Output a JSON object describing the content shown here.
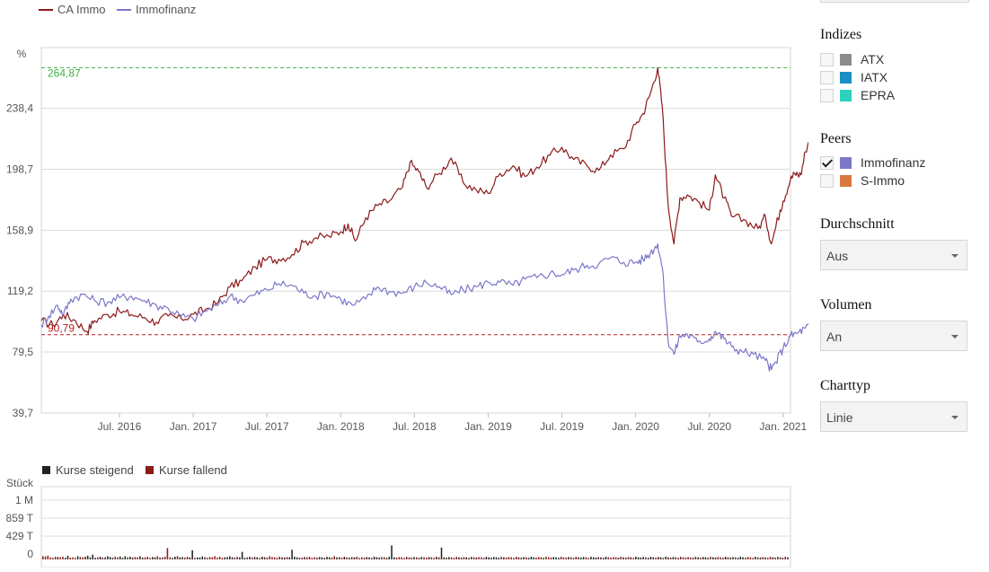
{
  "chart_data": [
    {
      "type": "line",
      "ylabel": "%",
      "ylim": [
        39.7,
        278.0
      ],
      "y_ticks": [
        "238,4",
        "198,7",
        "158,9",
        "119,2",
        "79,5",
        "39,7"
      ],
      "y_tick_values": [
        238.4,
        198.7,
        158.9,
        119.2,
        79.5,
        39.7
      ],
      "x_ticks": [
        "Jul. 2016",
        "Jan. 2017",
        "Jul. 2017",
        "Jan. 2018",
        "Jul. 2018",
        "Jan. 2019",
        "Jul. 2019",
        "Jan. 2020",
        "Jul. 2020",
        "Jan. 2021"
      ],
      "x_tick_values": [
        2016.5,
        2017.0,
        2017.5,
        2018.0,
        2018.5,
        2019.0,
        2019.5,
        2020.0,
        2020.5,
        2021.0
      ],
      "xlim": [
        2015.97,
        2021.05
      ],
      "grid": true,
      "legend_position": "top-left",
      "reference_lines": [
        {
          "label": "264,87",
          "value": 264.87,
          "color": "#3cb043"
        },
        {
          "label": "90,79",
          "value": 90.79,
          "color": "#b3201e"
        }
      ],
      "series": [
        {
          "name": "CA Immo",
          "color": "#8b1a1a",
          "points": [
            [
              2015.97,
              100
            ],
            [
              2016.05,
              97
            ],
            [
              2016.12,
              104
            ],
            [
              2016.2,
              100
            ],
            [
              2016.28,
              93
            ],
            [
              2016.33,
              100
            ],
            [
              2016.42,
              104
            ],
            [
              2016.5,
              106
            ],
            [
              2016.58,
              104
            ],
            [
              2016.67,
              102
            ],
            [
              2016.75,
              99
            ],
            [
              2016.83,
              103
            ],
            [
              2016.92,
              101
            ],
            [
              2017.0,
              104
            ],
            [
              2017.08,
              107
            ],
            [
              2017.17,
              112
            ],
            [
              2017.25,
              122
            ],
            [
              2017.33,
              126
            ],
            [
              2017.42,
              135
            ],
            [
              2017.5,
              140
            ],
            [
              2017.58,
              140
            ],
            [
              2017.67,
              143
            ],
            [
              2017.75,
              151
            ],
            [
              2017.83,
              154
            ],
            [
              2017.92,
              155
            ],
            [
              2018.0,
              158
            ],
            [
              2018.05,
              163
            ],
            [
              2018.1,
              152
            ],
            [
              2018.17,
              167
            ],
            [
              2018.25,
              175
            ],
            [
              2018.33,
              178
            ],
            [
              2018.42,
              187
            ],
            [
              2018.47,
              203
            ],
            [
              2018.53,
              197
            ],
            [
              2018.58,
              187
            ],
            [
              2018.67,
              196
            ],
            [
              2018.75,
              206
            ],
            [
              2018.83,
              190
            ],
            [
              2018.92,
              185
            ],
            [
              2019.0,
              183
            ],
            [
              2019.08,
              196
            ],
            [
              2019.17,
              201
            ],
            [
              2019.25,
              194
            ],
            [
              2019.33,
              200
            ],
            [
              2019.42,
              208
            ],
            [
              2019.5,
              213
            ],
            [
              2019.58,
              205
            ],
            [
              2019.67,
              201
            ],
            [
              2019.75,
              198
            ],
            [
              2019.83,
              208
            ],
            [
              2019.92,
              212
            ],
            [
              2020.0,
              228
            ],
            [
              2020.05,
              235
            ],
            [
              2020.1,
              248
            ],
            [
              2020.15,
              265
            ],
            [
              2020.18,
              240
            ],
            [
              2020.22,
              176
            ],
            [
              2020.26,
              150
            ],
            [
              2020.3,
              180
            ],
            [
              2020.35,
              182
            ],
            [
              2020.42,
              178
            ],
            [
              2020.5,
              172
            ],
            [
              2020.54,
              195
            ],
            [
              2020.6,
              180
            ],
            [
              2020.65,
              168
            ],
            [
              2020.75,
              165
            ],
            [
              2020.83,
              160
            ],
            [
              2020.88,
              168
            ],
            [
              2020.92,
              150
            ],
            [
              2020.98,
              172
            ],
            [
              2021.0,
              178
            ],
            [
              2021.05,
              192
            ],
            [
              2021.08,
              196
            ],
            [
              2021.12,
              195
            ],
            [
              2021.15,
              210
            ],
            [
              2021.2,
              225
            ],
            [
              2021.23,
              222
            ]
          ]
        },
        {
          "name": "Immofinanz",
          "color": "#7b78c8",
          "points": [
            [
              2015.97,
              97
            ],
            [
              2016.02,
              103
            ],
            [
              2016.08,
              110
            ],
            [
              2016.12,
              104
            ],
            [
              2016.17,
              114
            ],
            [
              2016.25,
              117
            ],
            [
              2016.33,
              113
            ],
            [
              2016.42,
              112
            ],
            [
              2016.5,
              115
            ],
            [
              2016.58,
              116
            ],
            [
              2016.67,
              113
            ],
            [
              2016.75,
              110
            ],
            [
              2016.83,
              108
            ],
            [
              2016.92,
              103
            ],
            [
              2017.0,
              101
            ],
            [
              2017.08,
              106
            ],
            [
              2017.17,
              110
            ],
            [
              2017.25,
              116
            ],
            [
              2017.33,
              113
            ],
            [
              2017.42,
              117
            ],
            [
              2017.5,
              120
            ],
            [
              2017.58,
              124
            ],
            [
              2017.67,
              123
            ],
            [
              2017.75,
              118
            ],
            [
              2017.83,
              116
            ],
            [
              2017.92,
              118
            ],
            [
              2018.0,
              114
            ],
            [
              2018.08,
              110
            ],
            [
              2018.17,
              114
            ],
            [
              2018.25,
              122
            ],
            [
              2018.33,
              119
            ],
            [
              2018.42,
              118
            ],
            [
              2018.5,
              122
            ],
            [
              2018.58,
              125
            ],
            [
              2018.67,
              122
            ],
            [
              2018.75,
              117
            ],
            [
              2018.83,
              120
            ],
            [
              2018.92,
              122
            ],
            [
              2019.0,
              125
            ],
            [
              2019.08,
              125
            ],
            [
              2019.17,
              123
            ],
            [
              2019.25,
              127
            ],
            [
              2019.33,
              128
            ],
            [
              2019.42,
              131
            ],
            [
              2019.5,
              130
            ],
            [
              2019.58,
              133
            ],
            [
              2019.67,
              136
            ],
            [
              2019.75,
              137
            ],
            [
              2019.83,
              141
            ],
            [
              2019.92,
              138
            ],
            [
              2020.0,
              138
            ],
            [
              2020.05,
              140
            ],
            [
              2020.1,
              144
            ],
            [
              2020.15,
              150
            ],
            [
              2020.18,
              135
            ],
            [
              2020.22,
              87
            ],
            [
              2020.26,
              78
            ],
            [
              2020.3,
              90
            ],
            [
              2020.35,
              91
            ],
            [
              2020.42,
              86
            ],
            [
              2020.5,
              88
            ],
            [
              2020.54,
              93
            ],
            [
              2020.6,
              88
            ],
            [
              2020.65,
              83
            ],
            [
              2020.72,
              80
            ],
            [
              2020.8,
              78
            ],
            [
              2020.88,
              74
            ],
            [
              2020.92,
              68
            ],
            [
              2020.95,
              73
            ],
            [
              2021.0,
              82
            ],
            [
              2021.05,
              90
            ],
            [
              2021.1,
              92
            ],
            [
              2021.15,
              95
            ],
            [
              2021.2,
              98
            ],
            [
              2021.23,
              96
            ]
          ]
        }
      ]
    },
    {
      "type": "bar",
      "ylabel": "Stück",
      "y_ticks": [
        "1 M",
        "859 T",
        "429 T",
        "0"
      ],
      "legend_position": "top-left",
      "series": [
        {
          "name": "Kurse steigend",
          "color": "#222222"
        },
        {
          "name": "Kurse fallend",
          "color": "#8b1a1a"
        }
      ],
      "values": [
        60,
        55,
        70,
        40,
        30,
        50,
        45,
        40,
        50,
        30,
        70,
        35,
        40,
        30,
        60,
        45,
        40,
        50,
        70,
        40,
        90,
        30,
        40,
        50,
        35,
        40,
        60,
        45,
        30,
        50,
        40,
        55,
        30,
        60,
        40,
        50,
        35,
        45,
        40,
        60,
        35,
        40,
        50,
        30,
        45,
        40,
        60,
        35,
        40,
        50,
        210,
        40,
        30,
        50,
        60,
        40,
        45,
        35,
        50,
        40,
        170,
        30,
        40,
        35,
        55,
        40,
        30,
        45,
        40,
        60,
        35,
        50,
        30,
        40,
        45,
        60,
        40,
        35,
        50,
        40,
        140,
        30,
        40,
        50,
        35,
        45,
        40,
        30,
        50,
        40,
        35,
        60,
        45,
        40,
        30,
        50,
        40,
        35,
        45,
        40,
        180,
        50,
        40,
        30,
        35,
        45,
        40,
        50,
        30,
        40,
        35,
        45,
        40,
        30,
        50,
        40,
        35,
        60,
        40,
        45,
        30,
        50,
        40,
        35,
        45,
        40,
        50,
        30,
        40,
        35,
        45,
        40,
        30,
        50,
        40,
        35,
        45,
        40,
        30,
        50,
        260,
        40,
        35,
        45,
        40,
        30,
        50,
        40,
        35,
        45,
        40,
        30,
        50,
        40,
        35,
        45,
        40,
        30,
        50,
        40,
        220,
        40,
        35,
        45,
        40,
        30,
        50,
        40,
        35,
        45,
        40,
        30,
        50,
        40,
        35,
        45,
        40,
        30,
        50,
        40,
        35,
        45,
        40,
        30,
        50,
        40,
        35,
        45,
        40,
        30,
        50,
        40,
        35,
        45,
        40,
        30,
        50,
        40,
        35,
        45,
        40,
        30,
        50,
        40,
        35,
        45,
        40,
        30,
        50,
        40,
        35,
        45,
        40,
        30,
        50,
        40,
        35,
        45,
        40,
        30,
        50,
        40,
        35,
        45,
        40,
        30,
        50,
        40,
        35,
        45,
        40,
        30,
        50,
        40,
        35,
        45,
        40,
        30,
        50,
        40,
        35,
        45,
        40,
        30,
        50,
        40,
        35,
        45,
        40,
        30,
        50,
        40,
        35,
        45,
        40,
        30,
        50,
        40,
        35,
        45,
        40,
        30,
        50,
        40,
        35,
        45,
        40,
        30,
        50,
        40,
        35,
        45,
        40,
        30,
        50,
        40,
        35,
        45,
        40,
        30,
        50,
        40,
        35,
        45,
        40,
        30,
        50,
        40,
        35,
        45,
        40,
        30,
        50,
        40,
        35,
        45,
        40,
        30,
        50,
        40
      ]
    }
  ],
  "sidebar": {
    "indizes": {
      "title": "Indizes",
      "items": [
        {
          "label": "ATX",
          "color": "#8c8c8c",
          "checked": false
        },
        {
          "label": "IATX",
          "color": "#1a8fc4",
          "checked": false
        },
        {
          "label": "EPRA",
          "color": "#2ed1bb",
          "checked": false
        }
      ]
    },
    "peers": {
      "title": "Peers",
      "items": [
        {
          "label": "Immofinanz",
          "color": "#7b78c8",
          "checked": true
        },
        {
          "label": "S-Immo",
          "color": "#d9773d",
          "checked": false
        }
      ]
    },
    "durchschnitt": {
      "title": "Durchschnitt",
      "value": "Aus"
    },
    "volumen": {
      "title": "Volumen",
      "value": "An"
    },
    "charttyp": {
      "title": "Charttyp",
      "value": "Linie"
    }
  }
}
